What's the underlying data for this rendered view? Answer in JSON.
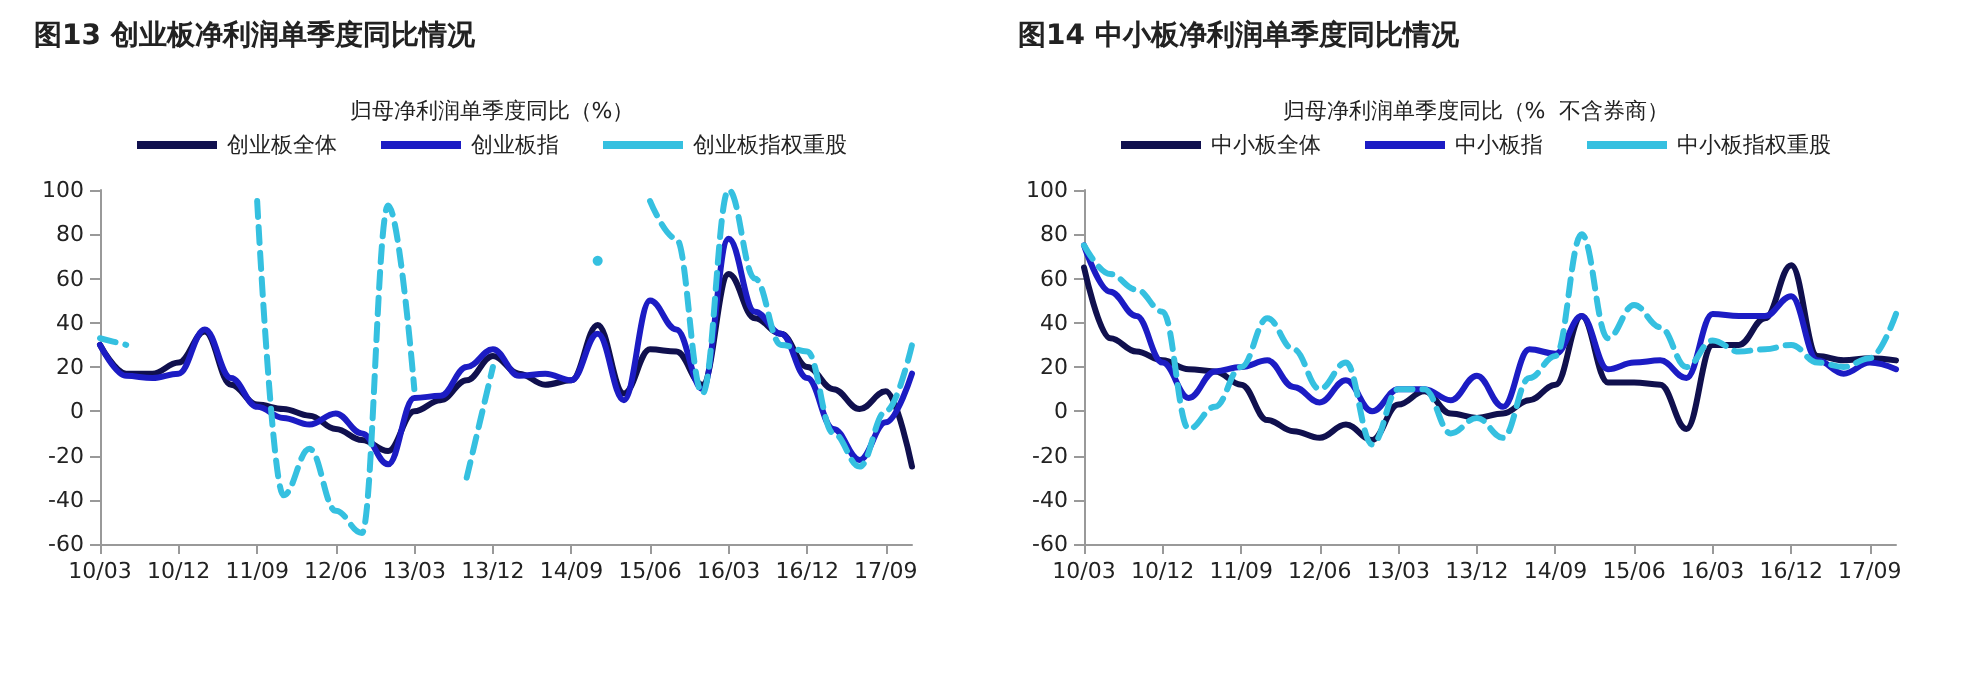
{
  "chart_data": [
    {
      "type": "line",
      "title": "图13 创业板净利润单季度同比情况",
      "subtitle": "归母净利润单季度同比（%）",
      "categories": [
        "10/03",
        null,
        null,
        "10/12",
        null,
        null,
        "11/09",
        null,
        null,
        "12/06",
        null,
        null,
        "13/03",
        null,
        null,
        "13/12",
        null,
        null,
        "14/09",
        null,
        null,
        "15/06",
        null,
        null,
        "16/03",
        null,
        null,
        "16/12",
        null,
        null,
        "17/09",
        null
      ],
      "series": [
        {
          "name": "创业板全体",
          "color": "#10104e",
          "line_style": "solid",
          "values": [
            30,
            17,
            17,
            22,
            36,
            12,
            3,
            1,
            -2,
            -8,
            -13,
            -18,
            0,
            5,
            14,
            25,
            17,
            12,
            14,
            39,
            8,
            28,
            27,
            12,
            62,
            42,
            35,
            20,
            10,
            1,
            9,
            -25
          ]
        },
        {
          "name": "创业板指",
          "color": "#1c1cc4",
          "line_style": "solid",
          "values": [
            30,
            16,
            15,
            17,
            37,
            15,
            2,
            -3,
            -6,
            -1,
            -10,
            -24,
            6,
            7,
            20,
            28,
            16,
            17,
            14,
            35,
            5,
            50,
            37,
            10,
            78,
            45,
            35,
            15,
            -8,
            -22,
            -5,
            17
          ]
        },
        {
          "name": "创业板指权重股",
          "color": "#35c0e0",
          "line_style": "dashed",
          "values": [
            33,
            30,
            null,
            null,
            null,
            null,
            95,
            -38,
            -17,
            -45,
            -55,
            93,
            10,
            null,
            -30,
            20,
            null,
            null,
            null,
            68,
            null,
            95,
            78,
            8,
            100,
            60,
            30,
            27,
            -10,
            -25,
            0,
            30
          ]
        }
      ],
      "ylim": [
        -60,
        100
      ],
      "yticks": [
        -60,
        -40,
        -20,
        0,
        20,
        40,
        60,
        80,
        100
      ],
      "grid": false,
      "legend": "top",
      "marker": "none"
    },
    {
      "type": "line",
      "title": "图14 中小板净利润单季度同比情况",
      "subtitle": "归母净利润单季度同比（%  不含券商）",
      "categories": [
        "10/03",
        null,
        null,
        "10/12",
        null,
        null,
        "11/09",
        null,
        null,
        "12/06",
        null,
        null,
        "13/03",
        null,
        null,
        "13/12",
        null,
        null,
        "14/09",
        null,
        null,
        "15/06",
        null,
        null,
        "16/03",
        null,
        null,
        "16/12",
        null,
        null,
        "17/09",
        null
      ],
      "series": [
        {
          "name": "中小板全体",
          "color": "#10104e",
          "line_style": "solid",
          "values": [
            65,
            33,
            27,
            23,
            19,
            18,
            12,
            -4,
            -9,
            -12,
            -6,
            -13,
            3,
            9,
            -1,
            -3,
            -1,
            5,
            12,
            43,
            13,
            13,
            12,
            -8,
            30,
            30,
            42,
            66,
            25,
            23,
            24,
            23
          ]
        },
        {
          "name": "中小板指",
          "color": "#1c1cc4",
          "line_style": "solid",
          "values": [
            75,
            54,
            43,
            22,
            6,
            18,
            20,
            23,
            11,
            4,
            14,
            0,
            10,
            10,
            5,
            16,
            2,
            28,
            26,
            43,
            19,
            22,
            23,
            15,
            44,
            43,
            43,
            52,
            23,
            17,
            22,
            19
          ]
        },
        {
          "name": "中小板指权重股",
          "color": "#35c0e0",
          "line_style": "dashed",
          "values": [
            75,
            62,
            55,
            45,
            -8,
            2,
            20,
            42,
            28,
            10,
            22,
            -15,
            10,
            10,
            -10,
            -3,
            -12,
            15,
            25,
            80,
            33,
            48,
            38,
            20,
            32,
            27,
            28,
            30,
            22,
            20,
            24,
            44
          ]
        }
      ],
      "ylim": [
        -60,
        100
      ],
      "yticks": [
        -60,
        -40,
        -20,
        0,
        20,
        40,
        60,
        80,
        100
      ],
      "grid": false,
      "legend": "top",
      "marker": "none"
    }
  ]
}
